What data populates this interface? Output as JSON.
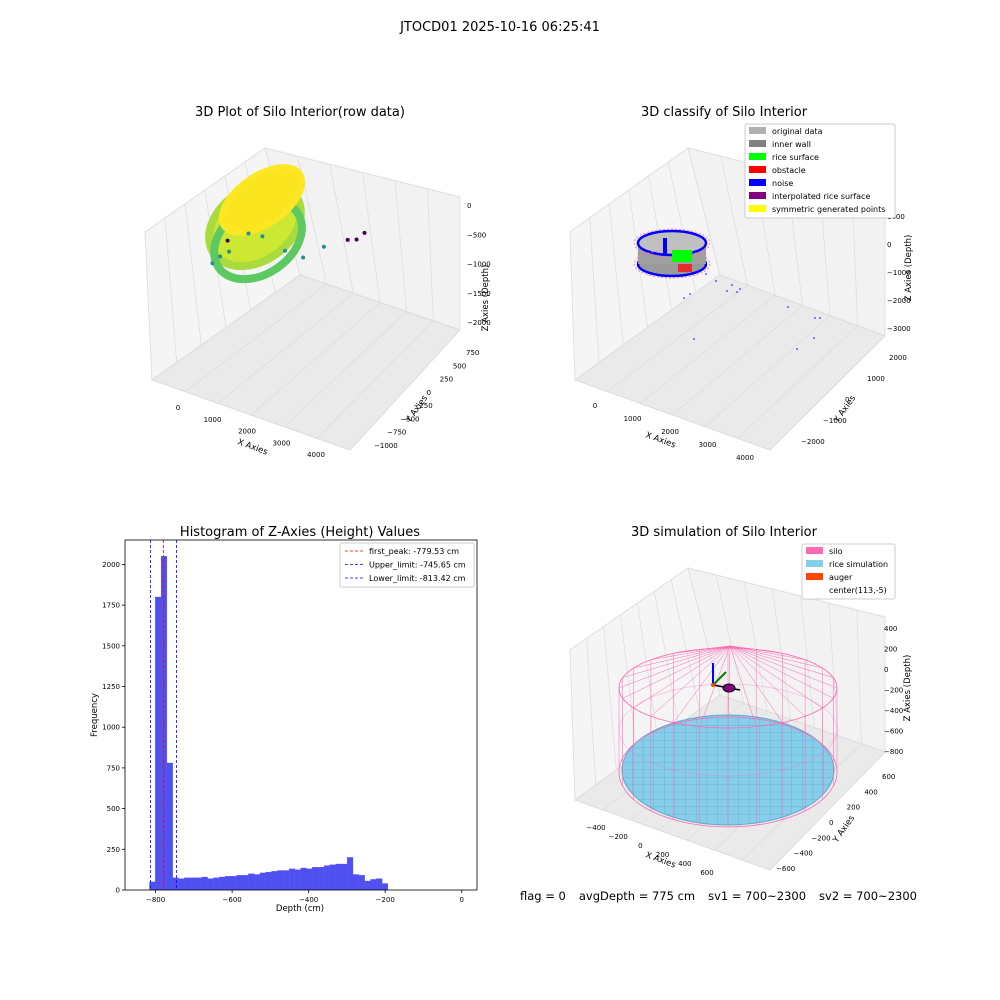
{
  "suptitle": "JTOCD01 2025-10-16 06:25:41",
  "colors": {
    "pane": "#f2f2f2",
    "grid": "#d9d9d9",
    "hist_bar": "#5050f0",
    "silo": "#ff69b4",
    "rice": "#87ceeb",
    "auger": "#ff4500",
    "noise": "#0000ff",
    "rice_surface": "#00ff00",
    "inner_wall": "#808080",
    "viridis_low": "#440154",
    "viridis_mid": "#21918c",
    "viridis_high": "#fde725"
  },
  "chart_data": [
    {
      "id": "raw",
      "type": "scatter3d",
      "title": "3D Plot of Silo Interior(row data)",
      "xlabel": "X Axies",
      "ylabel": "Y Axies",
      "zlabel": "Z Axies (Depth)",
      "xticks": [
        "0",
        "1000",
        "2000",
        "3000",
        "4000"
      ],
      "yticks": [
        "−1000",
        "−750",
        "−500",
        "−250",
        "0",
        "250",
        "500",
        "750"
      ],
      "zticks": [
        "−2000",
        "−1500",
        "−1000",
        "−500",
        "0"
      ],
      "xlim": [
        -300,
        4500
      ],
      "ylim": [
        -1100,
        800
      ],
      "zlim": [
        -2200,
        0
      ],
      "colormap": "viridis",
      "points": [
        {
          "x": 100,
          "y": 150,
          "z": -1000
        },
        {
          "x": 150,
          "y": 250,
          "z": -1100
        },
        {
          "x": 300,
          "y": 300,
          "z": -1200
        },
        {
          "x": 500,
          "y": 500,
          "z": -1500
        },
        {
          "x": 700,
          "y": 600,
          "z": -1450
        },
        {
          "x": 1500,
          "y": 400,
          "z": -1400
        },
        {
          "x": 1800,
          "y": 500,
          "z": -1300
        },
        {
          "x": 2100,
          "y": 650,
          "z": -1500
        },
        {
          "x": 2600,
          "y": 700,
          "z": -1700
        },
        {
          "x": 3000,
          "y": 700,
          "z": -1900
        },
        {
          "x": 3400,
          "y": 250,
          "z": -2000
        },
        {
          "x": 1900,
          "y": -950,
          "z": -2100
        }
      ]
    },
    {
      "id": "classify",
      "type": "scatter3d",
      "title": "3D classify of Silo Interior",
      "xlabel": "X Axies",
      "ylabel": "Y Axies",
      "zlabel": "Z Axies (Depth)",
      "xticks": [
        "0",
        "1000",
        "2000",
        "3000",
        "4000"
      ],
      "yticks": [
        "−2000",
        "−1000",
        "0",
        "1000",
        "2000"
      ],
      "zticks": [
        "−3000",
        "−2000",
        "−1000",
        "0",
        "1000"
      ],
      "legend_loc": "upper right",
      "legend": [
        {
          "label": "original data",
          "color": "#b0b0b0"
        },
        {
          "label": "inner wall",
          "color": "#808080"
        },
        {
          "label": "rice surface",
          "color": "#00ff00"
        },
        {
          "label": "obstacle",
          "color": "#ff0000"
        },
        {
          "label": "noise",
          "color": "#0000ff"
        },
        {
          "label": "interpolated rice surface",
          "color": "#800080"
        },
        {
          "label": "symmetric generated points",
          "color": "#ffff00"
        }
      ]
    },
    {
      "id": "histogram",
      "type": "bar",
      "title": "Histogram of Z-Axies (Height) Values",
      "xlabel": "Depth (cm)",
      "ylabel": "Frequency",
      "xlim": [
        -880,
        40
      ],
      "ylim": [
        0,
        2150
      ],
      "xticks": [
        -800,
        -600,
        -400,
        -200,
        0
      ],
      "xtick_labels": [
        "−800",
        "−600",
        "−400",
        "−200",
        "0"
      ],
      "yticks": [
        0,
        250,
        500,
        750,
        1000,
        1250,
        1500,
        1750,
        2000
      ],
      "bin_start": -816,
      "bin_width": 15.2,
      "values": [
        50,
        1800,
        2050,
        780,
        75,
        70,
        75,
        75,
        75,
        80,
        70,
        75,
        80,
        85,
        85,
        90,
        90,
        100,
        95,
        105,
        110,
        115,
        120,
        120,
        130,
        125,
        135,
        130,
        140,
        140,
        150,
        155,
        160,
        160,
        200,
        95,
        90,
        55,
        65,
        70,
        40
      ],
      "lines": [
        {
          "x": -779.53,
          "color": "#ff0000",
          "label": "first_peak: -779.53 cm"
        },
        {
          "x": -745.65,
          "color": "#0000ff",
          "label": "Upper_limit: -745.65 cm"
        },
        {
          "x": -813.42,
          "color": "#0000ff",
          "label": "Lower_limit: -813.42 cm"
        }
      ]
    },
    {
      "id": "simulation",
      "type": "surface3d",
      "title": "3D simulation of Silo Interior",
      "xlabel": "X Axies",
      "ylabel": "Y Axies",
      "zlabel": "Z Axies (Depth)",
      "xticks": [
        "−400",
        "−200",
        "0",
        "200",
        "400",
        "600"
      ],
      "yticks": [
        "−600",
        "−400",
        "−200",
        "0",
        "200",
        "400",
        "600"
      ],
      "zticks": [
        "−800",
        "−600",
        "−400",
        "−200",
        "0",
        "200",
        "400"
      ],
      "legend_loc": "upper right",
      "legend": [
        {
          "label": "silo",
          "color": "#ff69b4"
        },
        {
          "label": "rice simulation",
          "color": "#87ceeb"
        },
        {
          "label": "auger",
          "color": "#ff4500"
        },
        {
          "label": "center(113,-5)",
          "color": ""
        }
      ]
    }
  ],
  "footer": {
    "flag": "flag = 0",
    "avg_depth": "avgDepth = 775 cm",
    "sv1": "sv1 = 700~2300",
    "sv2": "sv2 = 700~2300"
  }
}
